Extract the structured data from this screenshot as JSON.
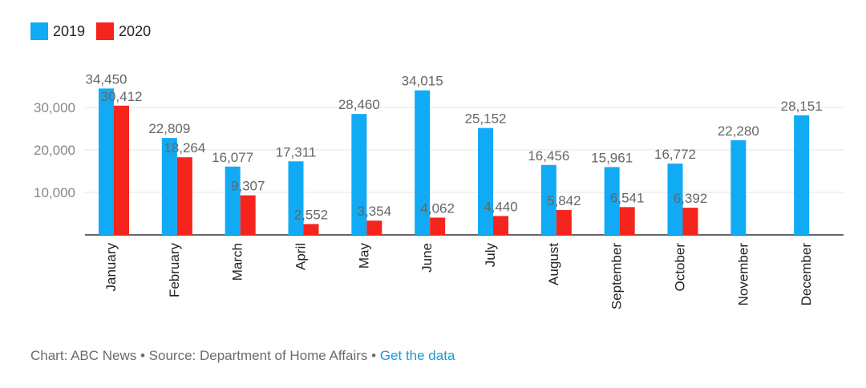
{
  "colors": {
    "series_2019": "#11aaf5",
    "series_2020": "#f5241d",
    "grid": "#e6e6e6",
    "axis": "#333333",
    "label": "#666666",
    "link": "#1b9ad6"
  },
  "chart_data": {
    "type": "bar",
    "categories": [
      "January",
      "February",
      "March",
      "April",
      "May",
      "June",
      "July",
      "August",
      "September",
      "October",
      "November",
      "December"
    ],
    "series": [
      {
        "name": "2019",
        "values": [
          34450,
          22809,
          16077,
          17311,
          28460,
          34015,
          25152,
          16456,
          15961,
          16772,
          22280,
          28151
        ]
      },
      {
        "name": "2020",
        "values": [
          30412,
          18264,
          9307,
          2552,
          3354,
          4062,
          4440,
          5842,
          6541,
          6392,
          null,
          null
        ]
      }
    ],
    "ylim": [
      0,
      40000
    ],
    "yticks": [
      "10,000",
      "20,000",
      "30,000"
    ],
    "grid": true,
    "legend_position": "top-left"
  },
  "footer": {
    "credit": "Chart: ABC News • Source: Department of Home Affairs • ",
    "link_label": "Get the data"
  }
}
